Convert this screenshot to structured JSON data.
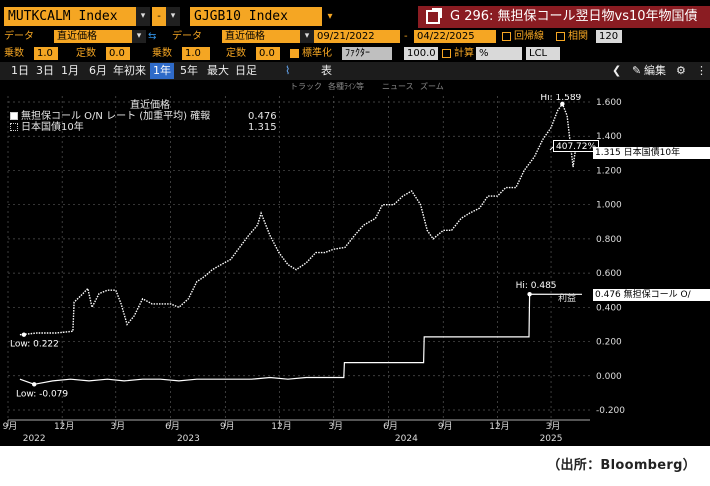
{
  "header": {
    "ticker1": "MUTKCALM Index",
    "ticker1_sep": "-",
    "ticker2": "GJGB10 Index",
    "title": "G 296: 無担保コール翌日物vs10年物国債"
  },
  "controls": {
    "data_label1": "データ",
    "data_value1": "直近価格",
    "data_label2": "データ",
    "data_value2": "直近価格",
    "date_start": "09/21/2022",
    "date_sep": "-",
    "date_end": "04/22/2025",
    "regression_label": "回帰線",
    "correlation_label": "相関",
    "correlation_value": "120",
    "mult_label1": "乗数",
    "mult_value1": "1.0",
    "const_label1": "定数",
    "const_value1": "0.0",
    "mult_label2": "乗数",
    "mult_value2": "1.0",
    "const_label2": "定数",
    "const_value2": "0.0",
    "normalize_label": "標準化",
    "normalize_value": "ﾌｧｸﾀｰ",
    "normalize_num": "100.0",
    "calc_label": "計算",
    "calc_value": "%",
    "lcl_value": "LCL"
  },
  "periods": [
    {
      "label": "1日",
      "active": false
    },
    {
      "label": "3日",
      "active": false
    },
    {
      "label": "1月",
      "active": false
    },
    {
      "label": "6月",
      "active": false
    },
    {
      "label": "年初来",
      "active": false
    },
    {
      "label": "1年",
      "active": true
    },
    {
      "label": "5年",
      "active": false
    },
    {
      "label": "最大",
      "active": false
    },
    {
      "label": "日足",
      "active": false
    }
  ],
  "table_label": "表",
  "edit_label": "編集",
  "tools": [
    "トラック",
    "各種ﾗｲﾝ等",
    "ニュース",
    "ズーム"
  ],
  "legend": {
    "header": "直近価格",
    "series": [
      {
        "name": "無担保コール O/N レート (加重平均) 確報",
        "value": "0.476"
      },
      {
        "name": "日本国債10年",
        "value": "1.315"
      }
    ]
  },
  "annotations": {
    "jgb_hi": "Hi: 1.589",
    "jgb_low": "Low: 0.222",
    "call_hi": "Hi: 0.485",
    "call_low": "Low: -0.079",
    "pct_tag": "407.72%",
    "jgb_tag": "1.315 日本国債10年",
    "call_tag": "0.476 無担保コール O/",
    "rieki": "利益"
  },
  "chart_data": {
    "type": "line",
    "ylim": [
      -0.2,
      1.7
    ],
    "yticks": [
      "1.600",
      "1.400",
      "1.200",
      "1.000",
      "0.800",
      "0.600",
      "0.400",
      "0.200",
      "0.000",
      "-0.200"
    ],
    "xticks": [
      {
        "label": "9月",
        "date": "2022-09-01"
      },
      {
        "label": "12月",
        "date": "2022-12-01"
      },
      {
        "label": "3月",
        "date": "2023-03-01"
      },
      {
        "label": "6月",
        "date": "2023-06-01"
      },
      {
        "label": "9月",
        "date": "2023-09-01"
      },
      {
        "label": "12月",
        "date": "2023-12-01"
      },
      {
        "label": "3月",
        "date": "2024-03-01"
      },
      {
        "label": "6月",
        "date": "2024-06-01"
      },
      {
        "label": "9月",
        "date": "2024-09-01"
      },
      {
        "label": "12月",
        "date": "2024-12-01"
      },
      {
        "label": "3月",
        "date": "2025-03-01"
      }
    ],
    "years": [
      {
        "label": "2022",
        "date": "2022-10-15"
      },
      {
        "label": "2023",
        "date": "2023-07-01"
      },
      {
        "label": "2024",
        "date": "2024-07-01"
      },
      {
        "label": "2025",
        "date": "2025-03-01"
      }
    ],
    "series": [
      {
        "name": "日本国債10年",
        "style": "dotted",
        "x": [
          "2022-09-21",
          "2022-10-20",
          "2022-11-20",
          "2022-12-19",
          "2022-12-21",
          "2023-01-05",
          "2023-01-13",
          "2023-01-20",
          "2023-02-01",
          "2023-02-15",
          "2023-03-01",
          "2023-03-10",
          "2023-03-20",
          "2023-04-01",
          "2023-04-15",
          "2023-05-01",
          "2023-05-15",
          "2023-06-01",
          "2023-06-15",
          "2023-07-01",
          "2023-07-15",
          "2023-07-28",
          "2023-08-10",
          "2023-08-25",
          "2023-09-10",
          "2023-09-25",
          "2023-10-10",
          "2023-10-25",
          "2023-10-31",
          "2023-11-15",
          "2023-11-30",
          "2023-12-15",
          "2023-12-29",
          "2024-01-15",
          "2024-01-31",
          "2024-02-15",
          "2024-03-01",
          "2024-03-20",
          "2024-04-05",
          "2024-04-20",
          "2024-05-10",
          "2024-05-22",
          "2024-06-10",
          "2024-06-25",
          "2024-07-10",
          "2024-07-25",
          "2024-08-05",
          "2024-08-15",
          "2024-09-01",
          "2024-09-15",
          "2024-10-01",
          "2024-10-15",
          "2024-11-01",
          "2024-11-15",
          "2024-12-01",
          "2024-12-15",
          "2025-01-01",
          "2025-01-15",
          "2025-02-01",
          "2025-02-15",
          "2025-03-01",
          "2025-03-12",
          "2025-03-20",
          "2025-03-28",
          "2025-04-07",
          "2025-04-10",
          "2025-04-15",
          "2025-04-22"
        ],
        "y": [
          0.24,
          0.25,
          0.25,
          0.26,
          0.43,
          0.48,
          0.51,
          0.4,
          0.48,
          0.5,
          0.5,
          0.42,
          0.3,
          0.35,
          0.45,
          0.42,
          0.42,
          0.42,
          0.4,
          0.45,
          0.55,
          0.58,
          0.62,
          0.65,
          0.68,
          0.75,
          0.82,
          0.88,
          0.95,
          0.82,
          0.72,
          0.65,
          0.62,
          0.66,
          0.72,
          0.72,
          0.74,
          0.75,
          0.82,
          0.88,
          0.92,
          1.0,
          1.0,
          1.05,
          1.08,
          1.0,
          0.85,
          0.8,
          0.85,
          0.85,
          0.92,
          0.95,
          0.98,
          1.05,
          1.05,
          1.1,
          1.1,
          1.2,
          1.28,
          1.38,
          1.45,
          1.55,
          1.589,
          1.52,
          1.22,
          1.3,
          1.32,
          1.315
        ]
      },
      {
        "name": "無担保コール O/N レート (加重平均) 確報",
        "style": "solid",
        "x": [
          "2022-09-21",
          "2022-10-15",
          "2022-11-15",
          "2022-12-15",
          "2023-01-15",
          "2023-02-15",
          "2023-03-15",
          "2023-04-15",
          "2023-05-15",
          "2023-06-15",
          "2023-07-15",
          "2023-08-15",
          "2023-09-15",
          "2023-10-15",
          "2023-11-15",
          "2023-12-15",
          "2024-01-15",
          "2024-02-15",
          "2024-03-18",
          "2024-03-19",
          "2024-07-30",
          "2024-07-31",
          "2025-01-23",
          "2025-01-24",
          "2025-04-22"
        ],
        "y": [
          -0.02,
          -0.05,
          -0.03,
          -0.02,
          -0.03,
          -0.02,
          -0.03,
          -0.02,
          -0.02,
          -0.03,
          -0.02,
          -0.02,
          -0.02,
          -0.02,
          -0.01,
          -0.02,
          -0.01,
          -0.01,
          -0.01,
          0.077,
          0.077,
          0.227,
          0.227,
          0.477,
          0.476
        ]
      }
    ]
  },
  "source": "（出所：Bloomberg）"
}
